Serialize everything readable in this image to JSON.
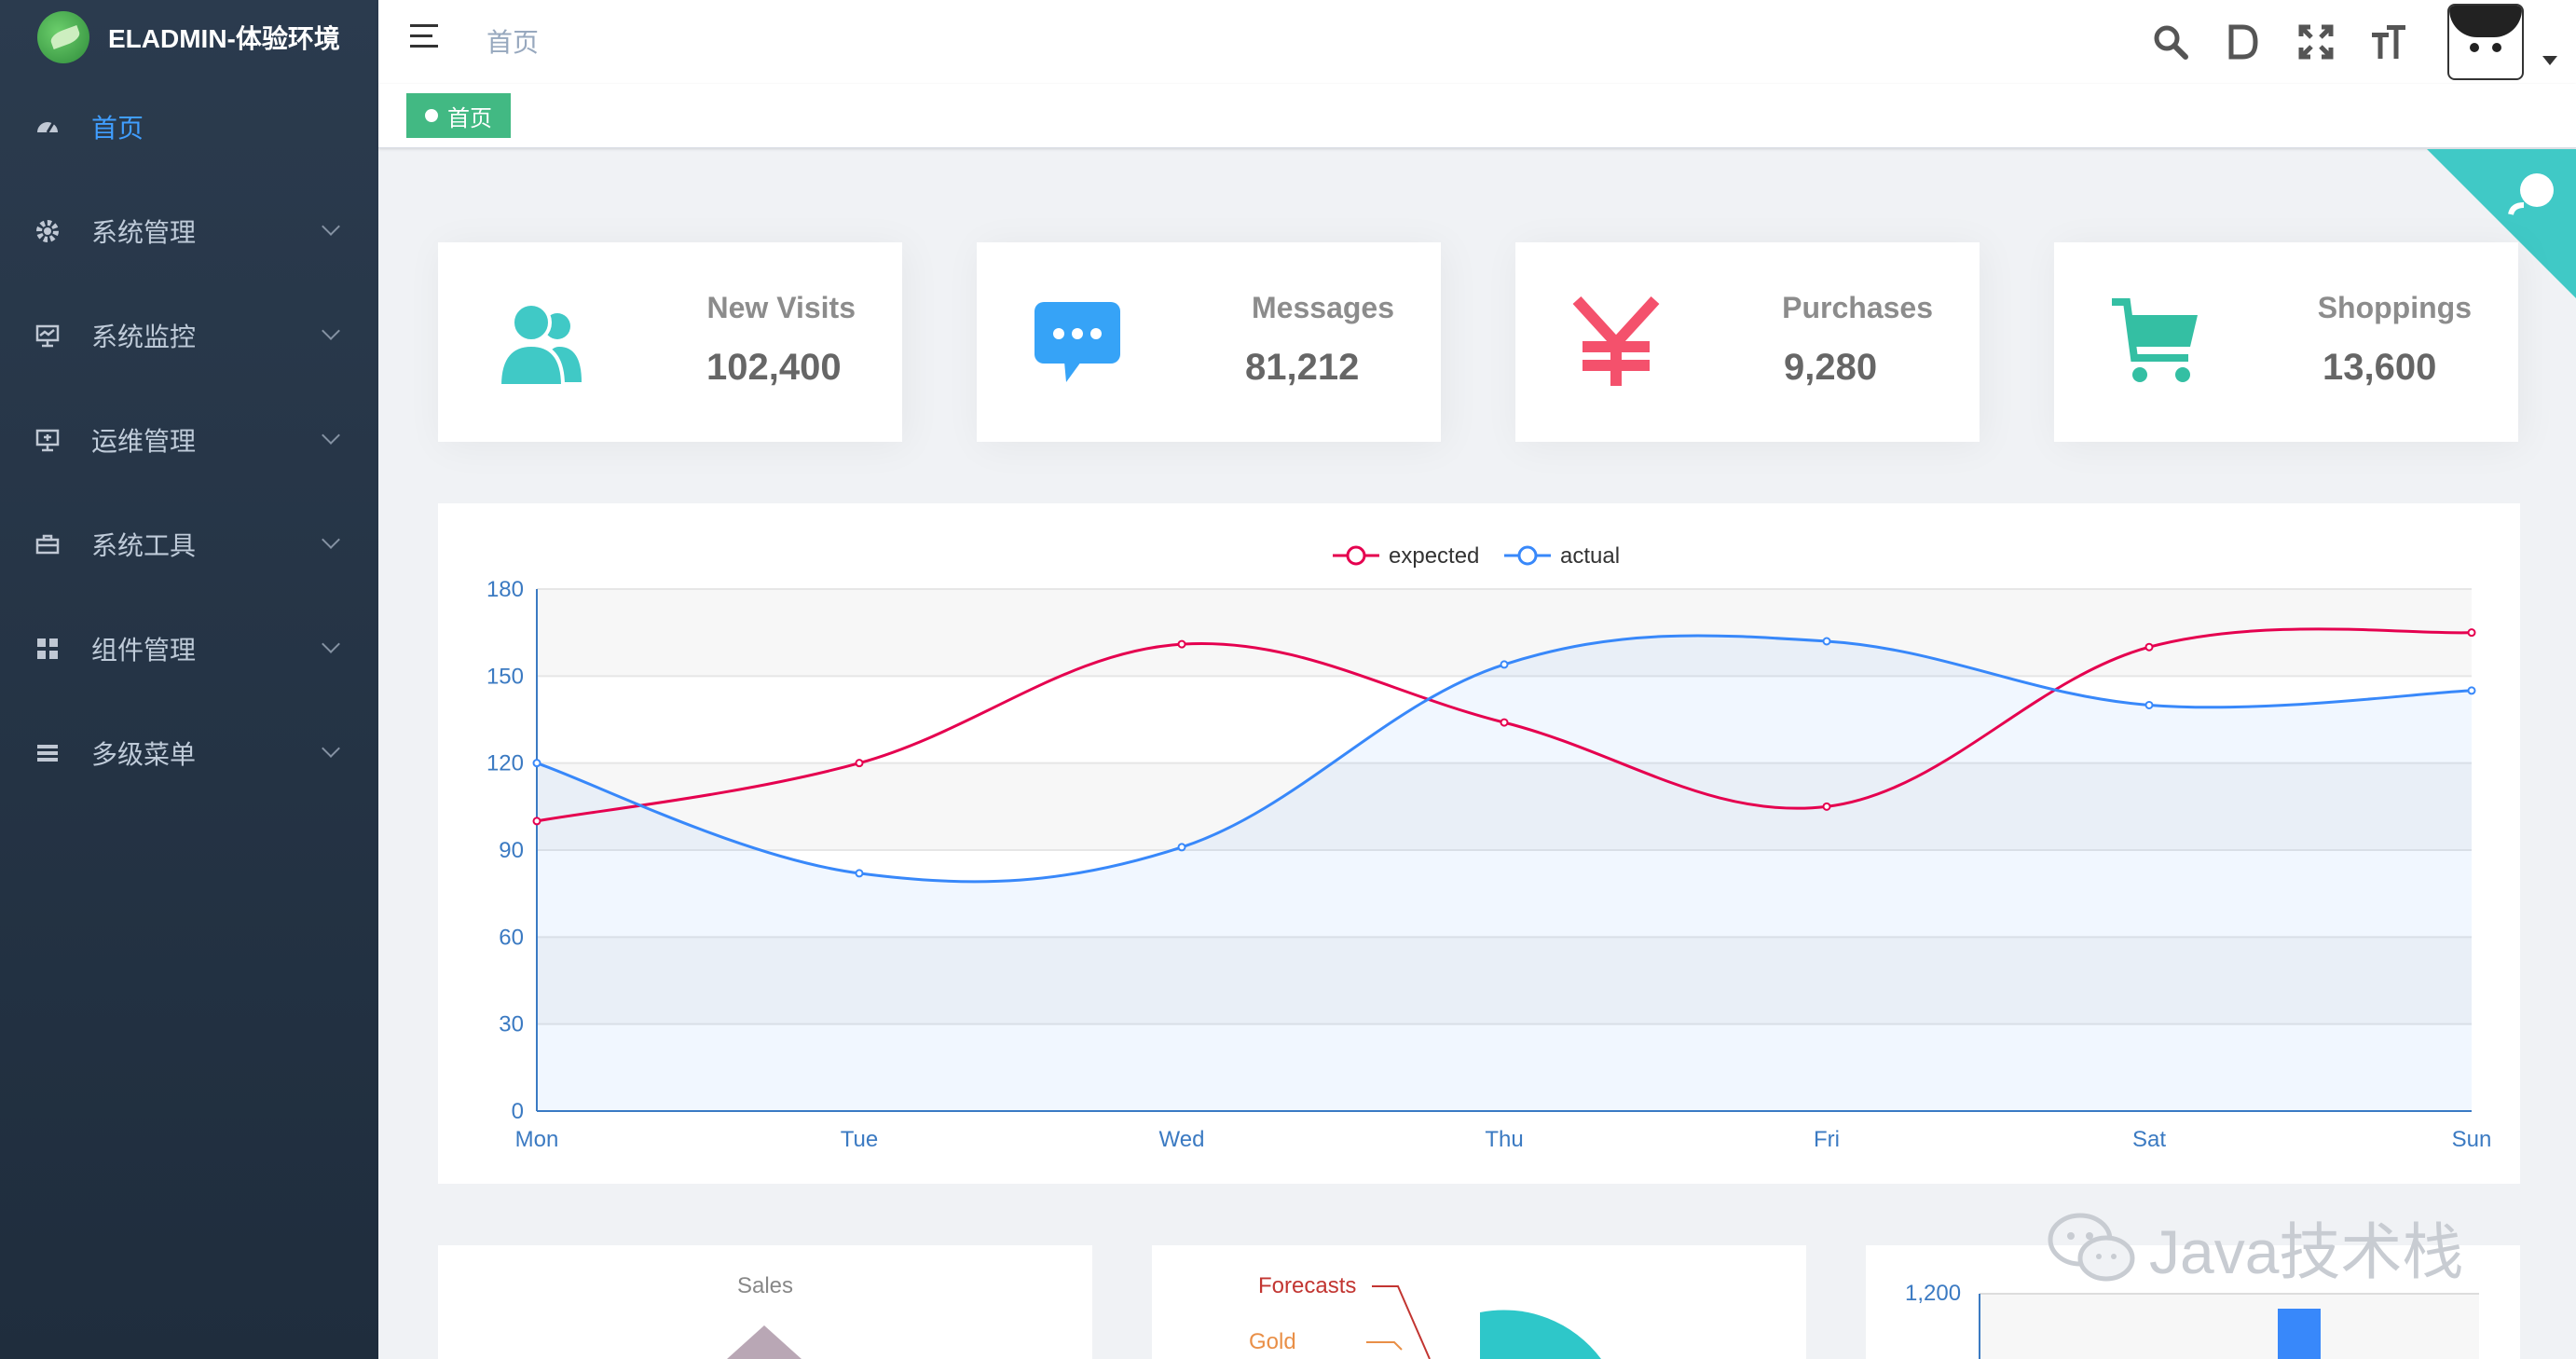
{
  "app": {
    "title": "ELADMIN-体验环境"
  },
  "sidebar": {
    "items": [
      {
        "label": "首页",
        "icon": "dashboard-icon",
        "active": true
      },
      {
        "label": "系统管理",
        "icon": "gear-icon"
      },
      {
        "label": "系统监控",
        "icon": "monitor-icon"
      },
      {
        "label": "运维管理",
        "icon": "server-icon"
      },
      {
        "label": "系统工具",
        "icon": "toolbox-icon"
      },
      {
        "label": "组件管理",
        "icon": "grid-icon"
      },
      {
        "label": "多级菜单",
        "icon": "list-icon"
      }
    ]
  },
  "navbar": {
    "breadcrumb": "首页",
    "tools": [
      "search-icon",
      "doc-icon",
      "fullscreen-icon",
      "font-size-icon"
    ]
  },
  "tags": [
    {
      "label": "首页",
      "active": true
    }
  ],
  "cards": [
    {
      "label": "New Visits",
      "value": "102,400",
      "icon": "people-icon",
      "color": "#40c9c6"
    },
    {
      "label": "Messages",
      "value": "81,212",
      "icon": "message-icon",
      "color": "#36a3f7"
    },
    {
      "label": "Purchases",
      "value": "9,280",
      "icon": "yuan-icon",
      "color": "#f4516c"
    },
    {
      "label": "Shoppings",
      "value": "13,600",
      "icon": "cart-icon",
      "color": "#34bfa3"
    }
  ],
  "chart_data": {
    "type": "line",
    "categories": [
      "Mon",
      "Tue",
      "Wed",
      "Thu",
      "Fri",
      "Sat",
      "Sun"
    ],
    "series": [
      {
        "name": "expected",
        "values": [
          100,
          120,
          161,
          134,
          105,
          160,
          165
        ],
        "color": "#e5004f"
      },
      {
        "name": "actual",
        "values": [
          120,
          82,
          91,
          154,
          162,
          140,
          145
        ],
        "color": "#3888fa"
      }
    ],
    "ylim": [
      0,
      180
    ],
    "yticks": [
      0,
      30,
      60,
      90,
      120,
      150,
      180
    ],
    "legend": "top-center",
    "grid": true
  },
  "bottom": {
    "pie_title": "Sales",
    "funnel_labels": [
      "Forecasts",
      "Gold"
    ],
    "bar_tick": "1,200"
  },
  "watermark": "Java技术栈"
}
